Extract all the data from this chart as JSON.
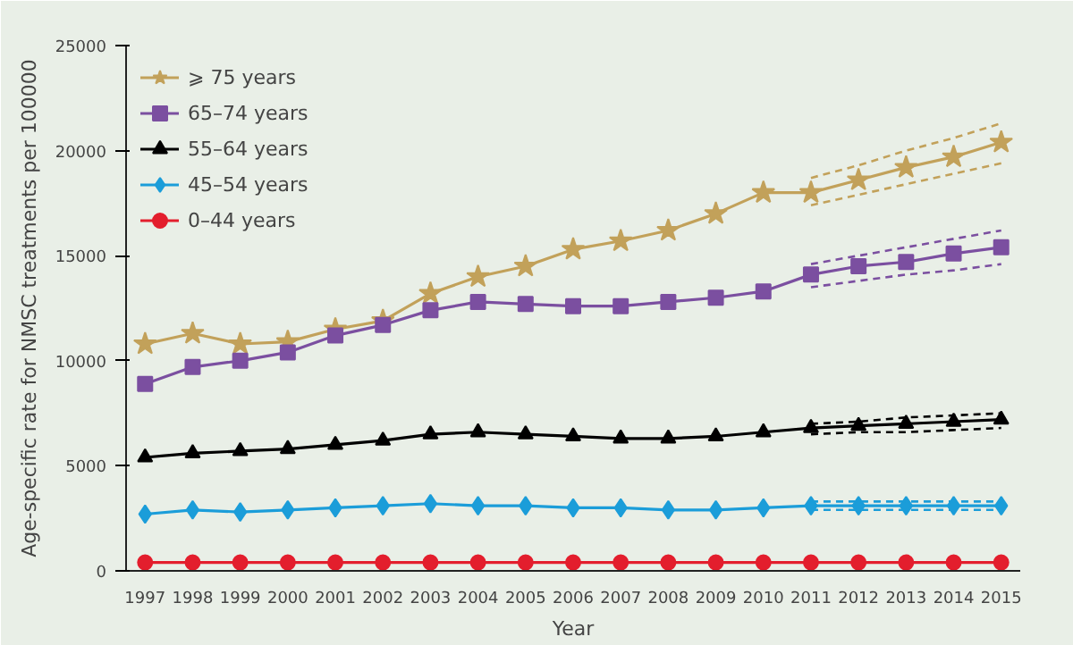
{
  "chart_data": {
    "type": "line",
    "xlabel": "Year",
    "ylabel": "Age-specific rate for NMSC treatments per 100000",
    "x": [
      1997,
      1998,
      1999,
      2000,
      2001,
      2002,
      2003,
      2004,
      2005,
      2006,
      2007,
      2008,
      2009,
      2010,
      2011,
      2012,
      2013,
      2014,
      2015
    ],
    "xlim": [
      1996.6,
      2015.4
    ],
    "xticks": [
      1997,
      1998,
      1999,
      2000,
      2001,
      2002,
      2003,
      2004,
      2005,
      2006,
      2007,
      2008,
      2009,
      2010,
      2011,
      2012,
      2013,
      2014,
      2015
    ],
    "ylim": [
      0,
      25000
    ],
    "yticks": [
      0,
      5000,
      10000,
      15000,
      20000,
      25000
    ],
    "grid": false,
    "legend": "top left",
    "series": [
      {
        "name": "⩾ 75 years",
        "color": "#c2a15a",
        "marker": "star",
        "values": [
          10800,
          11300,
          10800,
          10900,
          11500,
          11900,
          13200,
          14000,
          14500,
          15300,
          15700,
          16200,
          17000,
          18000,
          18000,
          18600,
          19200,
          19700,
          20400
        ]
      },
      {
        "name": "65–74 years",
        "color": "#7b4fa0",
        "marker": "square",
        "values": [
          8900,
          9700,
          10000,
          10400,
          11200,
          11700,
          12400,
          12800,
          12700,
          12600,
          12600,
          12800,
          13000,
          13300,
          14100,
          14500,
          14700,
          15100,
          15400
        ]
      },
      {
        "name": "55–64 years",
        "color": "#000000",
        "marker": "triangle",
        "values": [
          5400,
          5600,
          5700,
          5800,
          6000,
          6200,
          6500,
          6600,
          6500,
          6400,
          6300,
          6300,
          6400,
          6600,
          6800,
          6900,
          7000,
          7100,
          7200
        ]
      },
      {
        "name": "45–54 years",
        "color": "#1b9dd9",
        "marker": "diamond",
        "values": [
          2700,
          2900,
          2800,
          2900,
          3000,
          3100,
          3200,
          3100,
          3100,
          3000,
          3000,
          2900,
          2900,
          3000,
          3100,
          3100,
          3100,
          3100,
          3100
        ]
      },
      {
        "name": "0–44 years",
        "color": "#e31e2d",
        "marker": "circle",
        "values": [
          400,
          400,
          400,
          400,
          400,
          400,
          400,
          400,
          400,
          400,
          400,
          400,
          400,
          400,
          400,
          400,
          400,
          400,
          400
        ]
      },
      {
        "color": "#c2a15a",
        "line_style": "dashed",
        "marker": "none",
        "values": [
          null,
          null,
          null,
          null,
          null,
          null,
          null,
          null,
          null,
          null,
          null,
          null,
          null,
          null,
          18700,
          19300,
          20000,
          20600,
          21300
        ]
      },
      {
        "color": "#c2a15a",
        "line_style": "dashed",
        "marker": "none",
        "values": [
          null,
          null,
          null,
          null,
          null,
          null,
          null,
          null,
          null,
          null,
          null,
          null,
          null,
          null,
          17400,
          17900,
          18400,
          18900,
          19400
        ]
      },
      {
        "color": "#7b4fa0",
        "line_style": "dashed",
        "marker": "none",
        "values": [
          null,
          null,
          null,
          null,
          null,
          null,
          null,
          null,
          null,
          null,
          null,
          null,
          null,
          null,
          14600,
          15000,
          15400,
          15800,
          16200
        ]
      },
      {
        "color": "#7b4fa0",
        "line_style": "dashed",
        "marker": "none",
        "values": [
          null,
          null,
          null,
          null,
          null,
          null,
          null,
          null,
          null,
          null,
          null,
          null,
          null,
          null,
          13500,
          13800,
          14100,
          14300,
          14600
        ]
      },
      {
        "color": "#000000",
        "line_style": "dashed",
        "marker": "none",
        "values": [
          null,
          null,
          null,
          null,
          null,
          null,
          null,
          null,
          null,
          null,
          null,
          null,
          null,
          null,
          7000,
          7100,
          7300,
          7400,
          7500
        ]
      },
      {
        "color": "#000000",
        "line_style": "dashed",
        "marker": "none",
        "values": [
          null,
          null,
          null,
          null,
          null,
          null,
          null,
          null,
          null,
          null,
          null,
          null,
          null,
          null,
          6500,
          6600,
          6600,
          6700,
          6800
        ]
      },
      {
        "color": "#1b9dd9",
        "line_style": "dashed",
        "marker": "none",
        "values": [
          null,
          null,
          null,
          null,
          null,
          null,
          null,
          null,
          null,
          null,
          null,
          null,
          null,
          null,
          3300,
          3300,
          3300,
          3300,
          3300
        ]
      },
      {
        "color": "#1b9dd9",
        "line_style": "dashed",
        "marker": "none",
        "values": [
          null,
          null,
          null,
          null,
          null,
          null,
          null,
          null,
          null,
          null,
          null,
          null,
          null,
          null,
          2900,
          2900,
          2900,
          2900,
          2900
        ]
      }
    ]
  }
}
